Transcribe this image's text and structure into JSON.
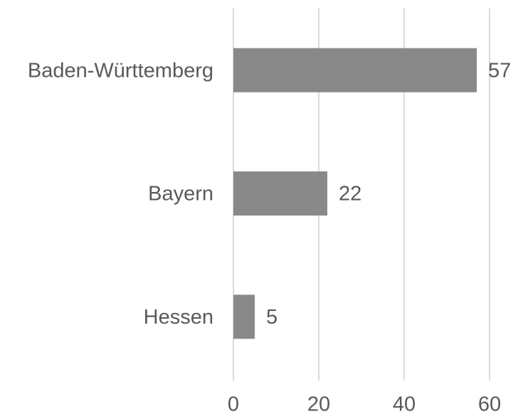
{
  "chart_data": {
    "type": "bar",
    "orientation": "horizontal",
    "categories": [
      "Baden-Württemberg",
      "Bayern",
      "Hessen"
    ],
    "values": [
      57,
      22,
      5
    ],
    "color": "#898989",
    "xlim": [
      0,
      60
    ],
    "xticks": [
      0,
      20,
      40,
      60
    ],
    "grid": true
  }
}
